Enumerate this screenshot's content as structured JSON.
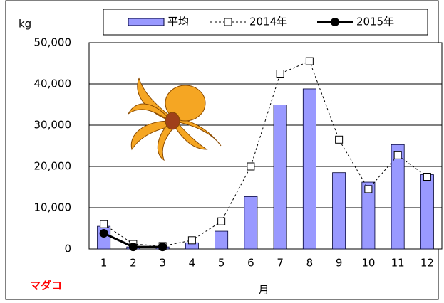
{
  "chart_data": {
    "type": "bar_line",
    "y_unit": "kg",
    "x_label": "月",
    "annotation": "マダコ",
    "categories": [
      "1",
      "2",
      "3",
      "4",
      "5",
      "6",
      "7",
      "8",
      "9",
      "10",
      "11",
      "12"
    ],
    "series": [
      {
        "name": "平均",
        "type": "bar",
        "color": "#9999ff",
        "values": [
          5500,
          500,
          500,
          1500,
          4300,
          12700,
          34900,
          38800,
          18500,
          16200,
          25300,
          18000
        ]
      },
      {
        "name": "2014年",
        "type": "line",
        "style": "dashed",
        "marker": "square",
        "color": "#000000",
        "values": [
          6000,
          1200,
          700,
          2100,
          6700,
          20000,
          42500,
          45500,
          26500,
          14500,
          22700,
          17500
        ]
      },
      {
        "name": "2015年",
        "type": "line",
        "style": "solid",
        "marker": "circle",
        "color": "#000000",
        "values": [
          3800,
          500,
          500,
          null,
          null,
          null,
          null,
          null,
          null,
          null,
          null,
          null
        ]
      }
    ],
    "ylim": [
      0,
      50000
    ],
    "yticks": [
      0,
      {
        "value": 10000,
        "label": "10,000"
      },
      {
        "value": 20000,
        "label": "20,000"
      },
      {
        "value": 30000,
        "label": "30,000"
      },
      {
        "value": 40000,
        "label": "40,000"
      },
      {
        "value": 50000,
        "label": "50,000"
      }
    ],
    "grid": true
  }
}
